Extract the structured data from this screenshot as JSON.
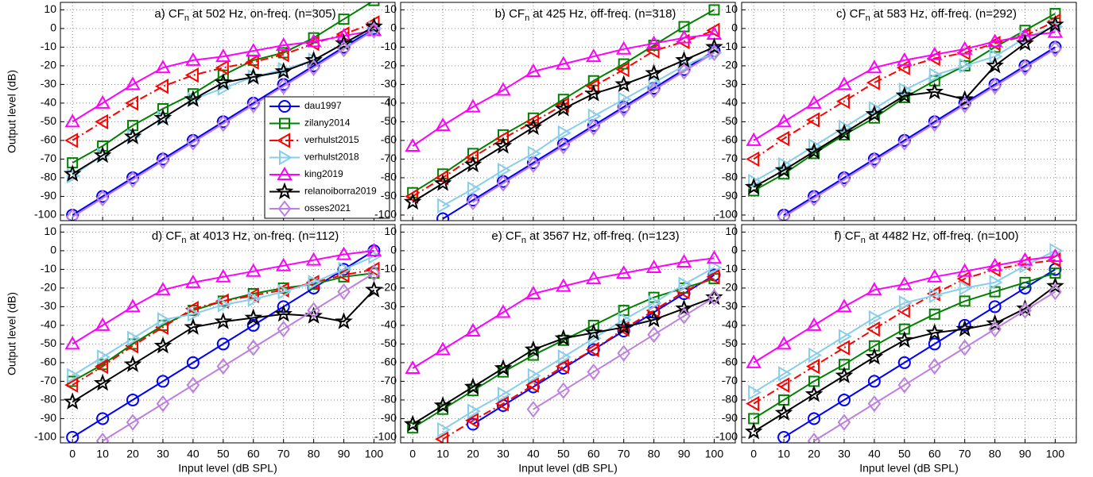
{
  "chart_data": [
    {
      "type": "line",
      "title": "a) CF",
      "title_sub": "n",
      "title_rest": "at 502 Hz, on-freq. (n=305)",
      "ylabel": "Output level (dB)",
      "xticklabels": false,
      "legend": "lower right",
      "grid": true,
      "x": [
        0,
        10,
        20,
        30,
        40,
        50,
        60,
        70,
        80,
        90,
        100
      ],
      "xlim": [
        -4,
        107
      ],
      "ylim": [
        -103,
        14
      ],
      "xticks": [
        0,
        10,
        20,
        30,
        40,
        50,
        60,
        70,
        80,
        90,
        100
      ],
      "yticks": [
        10,
        0,
        -10,
        -20,
        -30,
        -40,
        -50,
        -60,
        -70,
        -80,
        -90,
        -100
      ],
      "series": [
        {
          "name": "dau1997",
          "color": "#0000ff",
          "marker": "circle",
          "linestyle": "solid",
          "values": [
            -100,
            -90,
            -80,
            -70,
            -60,
            -50,
            -40,
            -30,
            -20,
            -10,
            0
          ]
        },
        {
          "name": "zilany2014",
          "color": "#008000",
          "marker": "square",
          "linestyle": "solid",
          "values": [
            -72,
            -63,
            -52,
            -43,
            -35,
            -25,
            -17,
            -13,
            -5,
            5,
            15
          ]
        },
        {
          "name": "verhulst2015",
          "color": "#ff0000",
          "marker": "triangle-left",
          "linestyle": "dashdot",
          "values": [
            -60,
            -50,
            -40,
            -31,
            -25,
            -21,
            -18,
            -14,
            -8,
            -3,
            3
          ]
        },
        {
          "name": "verhulst2018",
          "color": "#87ceeb",
          "marker": "triangle-right",
          "linestyle": "solid",
          "values": [
            -79,
            -68,
            -58,
            -48,
            -38,
            -32,
            -26,
            -22,
            -17,
            -8,
            0
          ]
        },
        {
          "name": "king2019",
          "color": "#ff00ff",
          "marker": "triangle-up",
          "linestyle": "solid",
          "values": [
            -50,
            -40,
            -30,
            -21,
            -17,
            -15,
            -12,
            -9,
            -7,
            -4,
            -1
          ]
        },
        {
          "name": "relanoiborra2019",
          "color": "#000000",
          "marker": "star",
          "linestyle": "solid",
          "values": [
            -78,
            -68,
            -58,
            -48,
            -38,
            -29,
            -26,
            -23,
            -17,
            -8,
            1
          ]
        },
        {
          "name": "osses2021",
          "color": "#bf7fdf",
          "marker": "diamond",
          "linestyle": "solid",
          "values": [
            -101,
            -91,
            -81,
            -71,
            -61,
            -51,
            -41,
            -31,
            -21,
            -11,
            -1
          ]
        }
      ]
    },
    {
      "type": "line",
      "title": "b) CF",
      "title_sub": "n",
      "title_rest": "at 425 Hz, off-freq. (n=318)",
      "xticklabels": false,
      "grid": true,
      "x": [
        0,
        10,
        20,
        30,
        40,
        50,
        60,
        70,
        80,
        90,
        100
      ],
      "xlim": [
        -4,
        107
      ],
      "ylim": [
        -103,
        14
      ],
      "xticks": [
        0,
        10,
        20,
        30,
        40,
        50,
        60,
        70,
        80,
        90,
        100
      ],
      "yticks": [
        10,
        0,
        -10,
        -20,
        -30,
        -40,
        -50,
        -60,
        -70,
        -80,
        -90,
        -100
      ],
      "series": [
        {
          "values": [
            null,
            -102,
            -92,
            -82,
            -72,
            -62,
            -52,
            -42,
            -32,
            -22,
            -12
          ]
        },
        {
          "values": [
            -88,
            -78,
            -67,
            -57,
            -48,
            -38,
            -28,
            -19,
            -9,
            1,
            10
          ]
        },
        {
          "values": [
            -90,
            -80,
            -69,
            -59,
            -50,
            -41,
            -31,
            -22,
            -12,
            -7,
            -1
          ]
        },
        {
          "values": [
            null,
            -95,
            -86,
            -76,
            -67,
            -56,
            -47,
            -38,
            -29,
            -20,
            -13
          ]
        },
        {
          "values": [
            -63,
            -52,
            -42,
            -33,
            -23,
            -19,
            -15,
            -11,
            -8,
            -5,
            -3
          ]
        },
        {
          "values": [
            -93,
            -83,
            -73,
            -63,
            -53,
            -43,
            -35,
            -30,
            -24,
            -17,
            -10
          ]
        },
        {
          "values": [
            null,
            null,
            -93,
            -83,
            -73,
            -63,
            -53,
            -43,
            -33,
            -23,
            -13
          ]
        }
      ]
    },
    {
      "type": "line",
      "title": "c) CF",
      "title_sub": "n",
      "title_rest": "at 583 Hz, off-freq. (n=292)",
      "xticklabels": false,
      "grid": true,
      "x": [
        0,
        10,
        20,
        30,
        40,
        50,
        60,
        70,
        80,
        90,
        100
      ],
      "xlim": [
        -4,
        107
      ],
      "ylim": [
        -103,
        14
      ],
      "xticks": [
        0,
        10,
        20,
        30,
        40,
        50,
        60,
        70,
        80,
        90,
        100
      ],
      "yticks": [
        10,
        0,
        -10,
        -20,
        -30,
        -40,
        -50,
        -60,
        -70,
        -80,
        -90,
        -100
      ],
      "series": [
        {
          "values": [
            null,
            -100,
            -90,
            -80,
            -70,
            -60,
            -50,
            -40,
            -30,
            -20,
            -10
          ]
        },
        {
          "values": [
            -87,
            -78,
            -67,
            -57,
            -48,
            -37,
            -28,
            -20,
            -10,
            -1,
            8
          ]
        },
        {
          "values": [
            -70,
            -59,
            -49,
            -39,
            -29,
            -21,
            -16,
            -13,
            -8,
            -4,
            4
          ]
        },
        {
          "values": [
            -82,
            -73,
            -63,
            -53,
            -43,
            -33,
            -25,
            -20,
            -15,
            -5,
            1
          ]
        },
        {
          "values": [
            -60,
            -50,
            -40,
            -30,
            -21,
            -17,
            -14,
            -11,
            -7,
            -4,
            -2
          ]
        },
        {
          "values": [
            -85,
            -76,
            -66,
            -56,
            -46,
            -36,
            -34,
            -38,
            -20,
            -8,
            2
          ]
        },
        {
          "values": [
            null,
            -101,
            -91,
            -81,
            -71,
            -61,
            -51,
            -41,
            -31,
            -21,
            -11
          ]
        }
      ]
    },
    {
      "type": "line",
      "title": "d) CF",
      "title_sub": "n",
      "title_rest": "at 4013 Hz, on-freq. (n=112)",
      "ylabel": "Output level (dB)",
      "xlabel": "Input level (dB SPL)",
      "xticklabels": true,
      "grid": true,
      "x": [
        0,
        10,
        20,
        30,
        40,
        50,
        60,
        70,
        80,
        90,
        100
      ],
      "xlim": [
        -4,
        107
      ],
      "ylim": [
        -103,
        14
      ],
      "xticks": [
        0,
        10,
        20,
        30,
        40,
        50,
        60,
        70,
        80,
        90,
        100
      ],
      "yticks": [
        10,
        0,
        -10,
        -20,
        -30,
        -40,
        -50,
        -60,
        -70,
        -80,
        -90,
        -100
      ],
      "series": [
        {
          "values": [
            -100,
            -90,
            -80,
            -70,
            -60,
            -50,
            -40,
            -30,
            -20,
            -10,
            0
          ]
        },
        {
          "values": [
            -70,
            -61,
            -50,
            -40,
            -32,
            -27,
            -23,
            -20,
            -18,
            -14,
            -12
          ]
        },
        {
          "values": [
            -72,
            -62,
            -51,
            -41,
            -31,
            -27,
            -24,
            -21,
            -17,
            -13,
            -10
          ]
        },
        {
          "values": [
            -67,
            -57,
            -47,
            -37,
            -34,
            -29,
            -26,
            -22,
            -17,
            -10,
            -3
          ]
        },
        {
          "values": [
            -50,
            -40,
            -30,
            -21,
            -17,
            -14,
            -11,
            -8,
            -5,
            -2,
            0
          ]
        },
        {
          "values": [
            -81,
            -71,
            -61,
            -51,
            -41,
            -38,
            -36,
            -34,
            -35,
            -38,
            -21
          ]
        },
        {
          "values": [
            null,
            -102,
            -92,
            -82,
            -72,
            -62,
            -52,
            -42,
            -32,
            -22,
            -12
          ]
        }
      ]
    },
    {
      "type": "line",
      "title": "e) CF",
      "title_sub": "n",
      "title_rest": "at 3567 Hz, off-freq. (n=123)",
      "xlabel": "Input level (dB SPL)",
      "xticklabels": true,
      "grid": true,
      "x": [
        0,
        10,
        20,
        30,
        40,
        50,
        60,
        70,
        80,
        90,
        100
      ],
      "xlim": [
        -4,
        107
      ],
      "ylim": [
        -103,
        14
      ],
      "xticks": [
        0,
        10,
        20,
        30,
        40,
        50,
        60,
        70,
        80,
        90,
        100
      ],
      "yticks": [
        10,
        0,
        -10,
        -20,
        -30,
        -40,
        -50,
        -60,
        -70,
        -80,
        -90,
        -100
      ],
      "series": [
        {
          "values": [
            null,
            null,
            -93,
            -83,
            -73,
            -63,
            -53,
            -43,
            -33,
            -23,
            -13
          ]
        },
        {
          "values": [
            -95,
            -85,
            -75,
            -65,
            -56,
            -48,
            -40,
            -32,
            -25,
            -20,
            -15
          ]
        },
        {
          "values": [
            null,
            -101,
            -91,
            -82,
            -72,
            -62,
            -53,
            -42,
            -32,
            -22,
            -14
          ]
        },
        {
          "values": [
            null,
            -96,
            -86,
            -77,
            -67,
            -57,
            -47,
            -37,
            -28,
            -18,
            -9
          ]
        },
        {
          "values": [
            -63,
            -53,
            -43,
            -33,
            -23,
            -19,
            -15,
            -12,
            -9,
            -6,
            -4
          ]
        },
        {
          "values": [
            -93,
            -83,
            -73,
            -63,
            -53,
            -47,
            -44,
            -41,
            -37,
            -31,
            -25
          ]
        },
        {
          "values": [
            null,
            null,
            null,
            null,
            -85,
            -75,
            -65,
            -55,
            -45,
            -35,
            -25
          ]
        }
      ]
    },
    {
      "type": "line",
      "title": "f) CF",
      "title_sub": "n",
      "title_rest": "at 4482 Hz, off-freq. (n=100)",
      "xlabel": "Input level (dB SPL)",
      "xticklabels": true,
      "grid": true,
      "x": [
        0,
        10,
        20,
        30,
        40,
        50,
        60,
        70,
        80,
        90,
        100
      ],
      "xlim": [
        -4,
        107
      ],
      "ylim": [
        -103,
        14
      ],
      "xticks": [
        0,
        10,
        20,
        30,
        40,
        50,
        60,
        70,
        80,
        90,
        100
      ],
      "yticks": [
        10,
        0,
        -10,
        -20,
        -30,
        -40,
        -50,
        -60,
        -70,
        -80,
        -90,
        -100
      ],
      "series": [
        {
          "values": [
            null,
            -100,
            -90,
            -80,
            -70,
            -60,
            -50,
            -40,
            -30,
            -20,
            -10
          ]
        },
        {
          "values": [
            -90,
            -80,
            -70,
            -61,
            -51,
            -42,
            -34,
            -27,
            -22,
            -17,
            -12
          ]
        },
        {
          "values": [
            -82,
            -72,
            -62,
            -52,
            -42,
            -32,
            -23,
            -15,
            -10,
            -7,
            -5
          ]
        },
        {
          "values": [
            -76,
            -66,
            -56,
            -46,
            -36,
            -28,
            -24,
            -20,
            -17,
            -8,
            0
          ]
        },
        {
          "values": [
            -60,
            -50,
            -40,
            -30,
            -21,
            -18,
            -14,
            -11,
            -8,
            -5,
            -3
          ]
        },
        {
          "values": [
            -97,
            -87,
            -77,
            -67,
            -57,
            -48,
            -44,
            -42,
            -39,
            -31,
            -19
          ]
        },
        {
          "values": [
            null,
            null,
            -102,
            -92,
            -82,
            -72,
            -62,
            -52,
            -42,
            -32,
            -22
          ]
        }
      ]
    }
  ]
}
